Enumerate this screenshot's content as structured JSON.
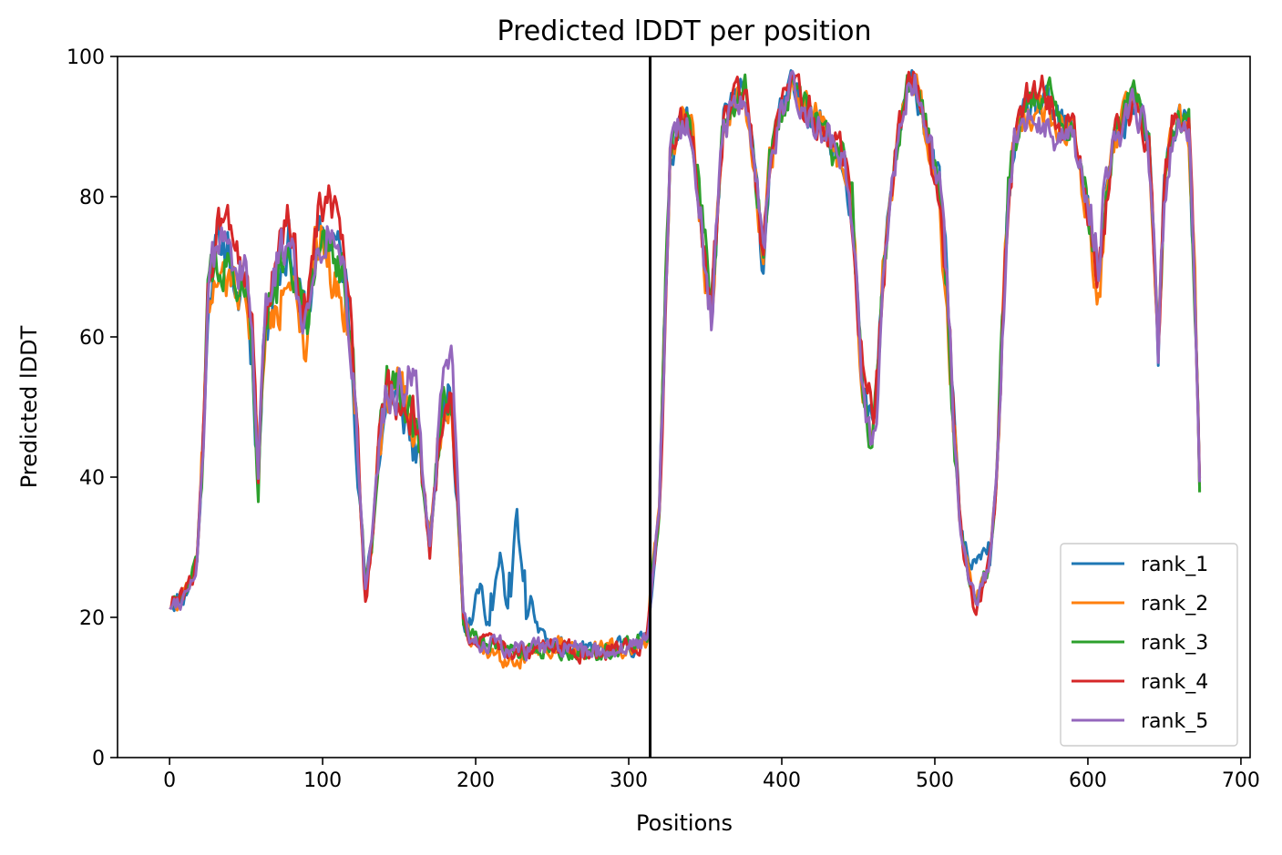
{
  "chart_data": {
    "type": "line",
    "title": "Predicted lDDT per position",
    "xlabel": "Positions",
    "ylabel": "Predicted lDDT",
    "xlim": [
      -34,
      706
    ],
    "ylim": [
      0,
      100
    ],
    "xticks": [
      0,
      100,
      200,
      300,
      400,
      500,
      600,
      700
    ],
    "yticks": [
      0,
      20,
      40,
      60,
      80,
      100
    ],
    "grid": false,
    "legend_position": "lower-right",
    "vertical_marker_x": 314,
    "colors": {
      "rank_1": "#1f77b4",
      "rank_2": "#ff7f0e",
      "rank_3": "#2ca02c",
      "rank_4": "#d62728",
      "rank_5": "#9467bd",
      "marker": "#000000"
    },
    "base_profile": [
      [
        0,
        22
      ],
      [
        10,
        23
      ],
      [
        18,
        28
      ],
      [
        22,
        45
      ],
      [
        25,
        65
      ],
      [
        30,
        72
      ],
      [
        38,
        74
      ],
      [
        45,
        70
      ],
      [
        50,
        68
      ],
      [
        54,
        60
      ],
      [
        58,
        39
      ],
      [
        62,
        62
      ],
      [
        70,
        68
      ],
      [
        78,
        74
      ],
      [
        85,
        66
      ],
      [
        90,
        62
      ],
      [
        95,
        72
      ],
      [
        100,
        75
      ],
      [
        108,
        74
      ],
      [
        115,
        68
      ],
      [
        120,
        55
      ],
      [
        125,
        35
      ],
      [
        128,
        25
      ],
      [
        132,
        30
      ],
      [
        137,
        45
      ],
      [
        142,
        53
      ],
      [
        148,
        52
      ],
      [
        155,
        50
      ],
      [
        162,
        47
      ],
      [
        168,
        35
      ],
      [
        170,
        31
      ],
      [
        176,
        45
      ],
      [
        180,
        52
      ],
      [
        184,
        52
      ],
      [
        188,
        38
      ],
      [
        192,
        20
      ],
      [
        196,
        17
      ],
      [
        210,
        16
      ],
      [
        230,
        15
      ],
      [
        250,
        16
      ],
      [
        270,
        15
      ],
      [
        290,
        15.5
      ],
      [
        305,
        16
      ],
      [
        312,
        17
      ],
      [
        316,
        27
      ],
      [
        320,
        35
      ],
      [
        324,
        65
      ],
      [
        327,
        86
      ],
      [
        332,
        90
      ],
      [
        340,
        91
      ],
      [
        345,
        82
      ],
      [
        350,
        70
      ],
      [
        354,
        63
      ],
      [
        358,
        78
      ],
      [
        362,
        90
      ],
      [
        370,
        94
      ],
      [
        376,
        95
      ],
      [
        380,
        88
      ],
      [
        385,
        78
      ],
      [
        388,
        70
      ],
      [
        392,
        85
      ],
      [
        400,
        92
      ],
      [
        406,
        95
      ],
      [
        412,
        94
      ],
      [
        420,
        92
      ],
      [
        430,
        89
      ],
      [
        440,
        86
      ],
      [
        446,
        78
      ],
      [
        450,
        62
      ],
      [
        454,
        50
      ],
      [
        458,
        47
      ],
      [
        462,
        52
      ],
      [
        466,
        68
      ],
      [
        470,
        78
      ],
      [
        476,
        88
      ],
      [
        482,
        95
      ],
      [
        487,
        96
      ],
      [
        492,
        92
      ],
      [
        498,
        86
      ],
      [
        504,
        80
      ],
      [
        508,
        68
      ],
      [
        512,
        50
      ],
      [
        516,
        35
      ],
      [
        520,
        28
      ],
      [
        526,
        22
      ],
      [
        530,
        24
      ],
      [
        536,
        28
      ],
      [
        540,
        38
      ],
      [
        544,
        60
      ],
      [
        548,
        80
      ],
      [
        552,
        88
      ],
      [
        560,
        92
      ],
      [
        570,
        93
      ],
      [
        580,
        91
      ],
      [
        590,
        89
      ],
      [
        596,
        84
      ],
      [
        602,
        76
      ],
      [
        607,
        68
      ],
      [
        612,
        80
      ],
      [
        618,
        88
      ],
      [
        624,
        91
      ],
      [
        630,
        93
      ],
      [
        636,
        90
      ],
      [
        640,
        86
      ],
      [
        644,
        68
      ],
      [
        646,
        58
      ],
      [
        650,
        82
      ],
      [
        655,
        90
      ],
      [
        660,
        91
      ],
      [
        666,
        90
      ],
      [
        670,
        66
      ],
      [
        673,
        38
      ]
    ],
    "series": [
      {
        "name": "rank_1",
        "seed": 11,
        "offsets": [
          [
            40,
            46,
            -9
          ],
          [
            50,
            56,
            -3
          ],
          [
            135,
            150,
            -2
          ],
          [
            150,
            170,
            -4
          ],
          [
            196,
            210,
            8
          ],
          [
            210,
            222,
            13
          ],
          [
            222,
            232,
            20
          ],
          [
            232,
            240,
            8
          ],
          [
            240,
            246,
            3
          ],
          [
            520,
            535,
            6
          ]
        ]
      },
      {
        "name": "rank_2",
        "seed": 22,
        "offsets": [
          [
            24,
            50,
            -7
          ],
          [
            62,
            80,
            -6
          ],
          [
            84,
            92,
            -8
          ],
          [
            100,
            118,
            -7
          ],
          [
            205,
            230,
            -1.5
          ],
          [
            430,
            445,
            -3
          ],
          [
            500,
            512,
            -5
          ],
          [
            596,
            612,
            -4
          ]
        ]
      },
      {
        "name": "rank_3",
        "seed": 33,
        "offsets": [
          [
            28,
            44,
            -3
          ],
          [
            90,
            112,
            -3
          ],
          [
            345,
            356,
            3
          ],
          [
            420,
            440,
            -2
          ],
          [
            450,
            462,
            -3
          ],
          [
            560,
            590,
            3
          ],
          [
            620,
            640,
            1.5
          ],
          [
            640,
            646,
            3
          ]
        ]
      },
      {
        "name": "rank_4",
        "seed": 44,
        "offsets": [
          [
            24,
            50,
            6
          ],
          [
            62,
            85,
            4
          ],
          [
            88,
            118,
            5
          ],
          [
            125,
            131,
            -3
          ],
          [
            168,
            172,
            -3
          ],
          [
            450,
            462,
            3
          ],
          [
            520,
            530,
            -2
          ],
          [
            555,
            580,
            3
          ]
        ]
      },
      {
        "name": "rank_5",
        "seed": 55,
        "offsets": [
          [
            150,
            165,
            6
          ],
          [
            176,
            188,
            5
          ],
          [
            62,
            80,
            3
          ],
          [
            555,
            600,
            -3
          ],
          [
            600,
            620,
            4
          ],
          [
            640,
            670,
            -2
          ]
        ]
      }
    ]
  }
}
